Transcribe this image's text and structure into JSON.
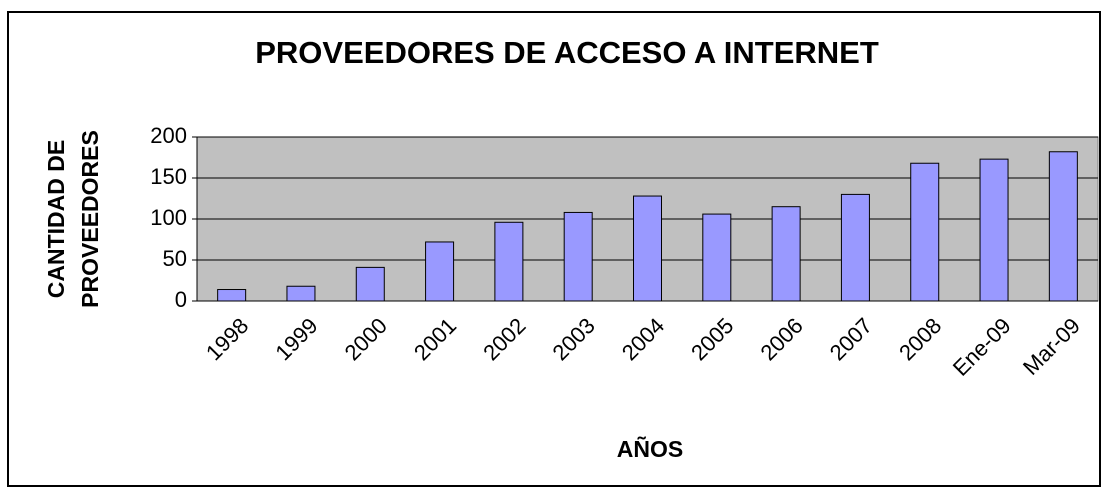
{
  "chart_data": {
    "type": "bar",
    "title": "PROVEEDORES DE ACCESO A INTERNET",
    "xlabel": "AÑOS",
    "ylabel": [
      "CANTIDAD DE",
      "PROVEEDORES"
    ],
    "categories": [
      "1998",
      "1999",
      "2000",
      "2001",
      "2002",
      "2003",
      "2004",
      "2005",
      "2006",
      "2007",
      "2008",
      "Ene-09",
      "Mar-09"
    ],
    "values": [
      14,
      18,
      41,
      72,
      96,
      108,
      128,
      106,
      115,
      130,
      168,
      173,
      182
    ],
    "color": "#9999ff",
    "ylim": [
      0,
      200
    ],
    "yticks": [
      0,
      50,
      100,
      150,
      200
    ],
    "grid": true
  }
}
